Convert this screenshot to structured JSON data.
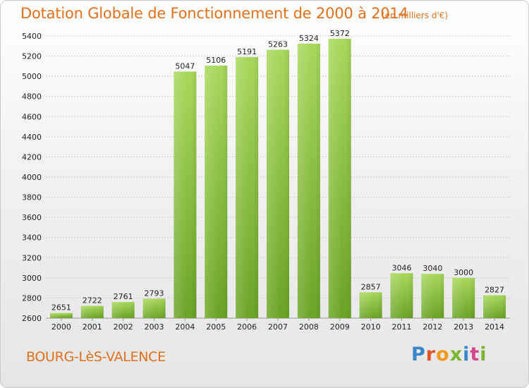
{
  "header": {
    "title": "Dotation Globale de Fonctionnement de 2000 à 2014",
    "unit": "(en milliers d'€)"
  },
  "footer": {
    "commune": "BOURG-LèS-VALENCE",
    "logo": "Proxiti"
  },
  "colors": {
    "title": "#e0701c",
    "bar_light": "#a8d85a",
    "bar_dark": "#6aa324",
    "grid": "#cfcfcf",
    "axis_text": "#222222"
  },
  "chart_data": {
    "type": "bar",
    "title": "Dotation Globale de Fonctionnement de 2000 à 2014",
    "subtitle": "(en milliers d'€)",
    "xlabel": "",
    "ylabel": "",
    "categories": [
      "2000",
      "2001",
      "2002",
      "2003",
      "2004",
      "2005",
      "2006",
      "2007",
      "2008",
      "2009",
      "2010",
      "2011",
      "2012",
      "2013",
      "2014"
    ],
    "values": [
      2651,
      2722,
      2761,
      2793,
      5047,
      5106,
      5191,
      5263,
      5324,
      5372,
      2857,
      3046,
      3040,
      3000,
      2827
    ],
    "ylim": [
      2600,
      5400
    ],
    "yticks": [
      2600,
      2800,
      3000,
      3200,
      3400,
      3600,
      3800,
      4000,
      4200,
      4400,
      4600,
      4800,
      5000,
      5200,
      5400
    ],
    "grid": true,
    "legend": "none",
    "data_labels": true
  }
}
